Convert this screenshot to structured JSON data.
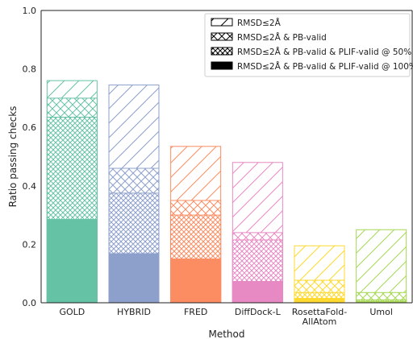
{
  "chart_data": {
    "type": "bar",
    "stacked_overlay": true,
    "categories": [
      "GOLD",
      "HYBRID",
      "FRED",
      "DiffDock-L",
      "RosettaFold-AllAtom",
      "Umol"
    ],
    "category_label_lines": [
      [
        "GOLD"
      ],
      [
        "HYBRID"
      ],
      [
        "FRED"
      ],
      [
        "DiffDock-L"
      ],
      [
        "RosettaFold-",
        "AllAtom"
      ],
      [
        "Umol"
      ]
    ],
    "colors": [
      "#66c2a5",
      "#8da0cb",
      "#fc8d62",
      "#e78ac3",
      "#ffd92f",
      "#a6d854"
    ],
    "series": [
      {
        "name": "RMSD≤2Å",
        "pattern": "diagonal",
        "values": [
          0.76,
          0.745,
          0.535,
          0.48,
          0.195,
          0.25
        ]
      },
      {
        "name": "RMSD≤2Å & PB-valid",
        "pattern": "crosshatch",
        "values": [
          0.7,
          0.46,
          0.35,
          0.24,
          0.077,
          0.035
        ]
      },
      {
        "name": "RMSD≤2Å & PB-valid & PLIF-valid @ 50%",
        "pattern": "dense-crosshatch",
        "values": [
          0.635,
          0.375,
          0.3,
          0.215,
          0.035,
          0.01
        ]
      },
      {
        "name": "RMSD≤2Å & PB-valid & PLIF-valid @ 100%",
        "pattern": "solid",
        "values": [
          0.285,
          0.168,
          0.15,
          0.073,
          0.015,
          0.005
        ]
      }
    ],
    "xlabel": "Method",
    "ylabel": "Ratio passing checks",
    "ylim": [
      0,
      1.0
    ],
    "yticks": [
      "0.0",
      "0.2",
      "0.4",
      "0.6",
      "0.8",
      "1.0"
    ],
    "legend_position": "top-right",
    "grid": false
  }
}
